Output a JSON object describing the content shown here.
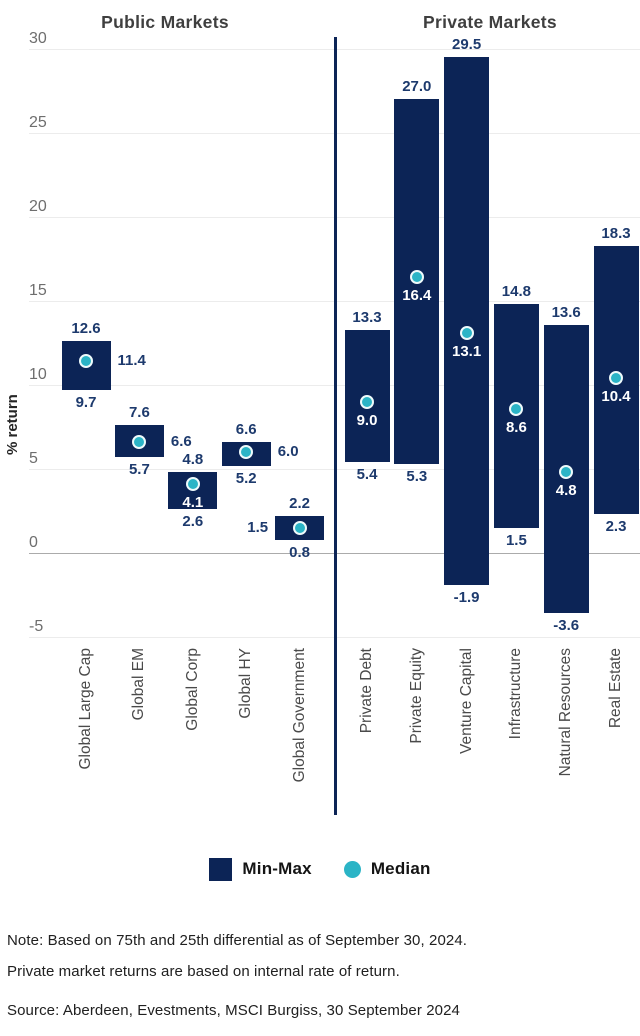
{
  "y_axis": {
    "label": "% return",
    "ticks": [
      "30",
      "25",
      "20",
      "15",
      "10",
      "5",
      "0",
      "-5"
    ]
  },
  "legend": {
    "minmax": "Min-Max",
    "median": "Median"
  },
  "footnotes": {
    "note_line1": "Note: Based on 75th and 25th differential as of September 30, 2024.",
    "note_line2": "Private market returns are based on internal rate of return.",
    "source": "Source: Aberdeen, Evestments, MSCI Burgiss, 30 September 2024"
  },
  "colors": {
    "bar": "#0c2456",
    "median_dot": "#2bb4c6",
    "value_label": "#1d3a6d",
    "divider": "#0c2456",
    "gridline": "#ececec",
    "zero_line": "#ababab",
    "tick_label": "#6e6e6e",
    "category_label": "#4a4a4a",
    "title": "#3f3f3f",
    "note_text": "#202020",
    "median_label_inside": "#ffffff"
  },
  "chart_data": {
    "type": "bar",
    "subtype": "floating min-max range bars with median markers",
    "ylabel": "% return",
    "ylim": [
      -5,
      30
    ],
    "yticks": [
      30,
      25,
      20,
      15,
      10,
      5,
      0,
      -5
    ],
    "grid": "horizontal gridlines on, zero line emphasized, vertical divider between panels",
    "legend_position": "bottom center",
    "panels": [
      {
        "title": "Public Markets",
        "categories": [
          "Global Large Cap",
          "Global EM",
          "Global Corp",
          "Global HY",
          "Global Government"
        ],
        "series": [
          {
            "category": "Global Large Cap",
            "min": 9.7,
            "max": 12.6,
            "median": 11.4,
            "median_label_placement": "right"
          },
          {
            "category": "Global EM",
            "min": 5.7,
            "max": 7.6,
            "median": 6.6,
            "median_label_placement": "right"
          },
          {
            "category": "Global Corp",
            "min": 2.6,
            "max": 4.8,
            "median": 4.1,
            "median_label_placement": "inside"
          },
          {
            "category": "Global HY",
            "min": 5.2,
            "max": 6.6,
            "median": 6.0,
            "median_label_placement": "right"
          },
          {
            "category": "Global Government",
            "min": 0.8,
            "max": 2.2,
            "median": 1.5,
            "median_label_placement": "left"
          }
        ]
      },
      {
        "title": "Private Markets",
        "categories": [
          "Private Debt",
          "Private Equity",
          "Venture Capital",
          "Infrastructure",
          "Natural Resources",
          "Real Estate"
        ],
        "series": [
          {
            "category": "Private Debt",
            "min": 5.4,
            "max": 13.3,
            "median": 9.0,
            "median_label_placement": "inside"
          },
          {
            "category": "Private Equity",
            "min": 5.3,
            "max": 27.0,
            "median": 16.4,
            "median_label_placement": "inside"
          },
          {
            "category": "Venture Capital",
            "min": -1.9,
            "max": 29.5,
            "median": 13.1,
            "median_label_placement": "inside"
          },
          {
            "category": "Infrastructure",
            "min": 1.5,
            "max": 14.8,
            "median": 8.6,
            "median_label_placement": "inside"
          },
          {
            "category": "Natural Resources",
            "min": -3.6,
            "max": 13.6,
            "median": 4.8,
            "median_label_placement": "inside"
          },
          {
            "category": "Real Estate",
            "min": 2.3,
            "max": 18.3,
            "median": 10.4,
            "median_label_placement": "inside"
          }
        ]
      }
    ]
  }
}
